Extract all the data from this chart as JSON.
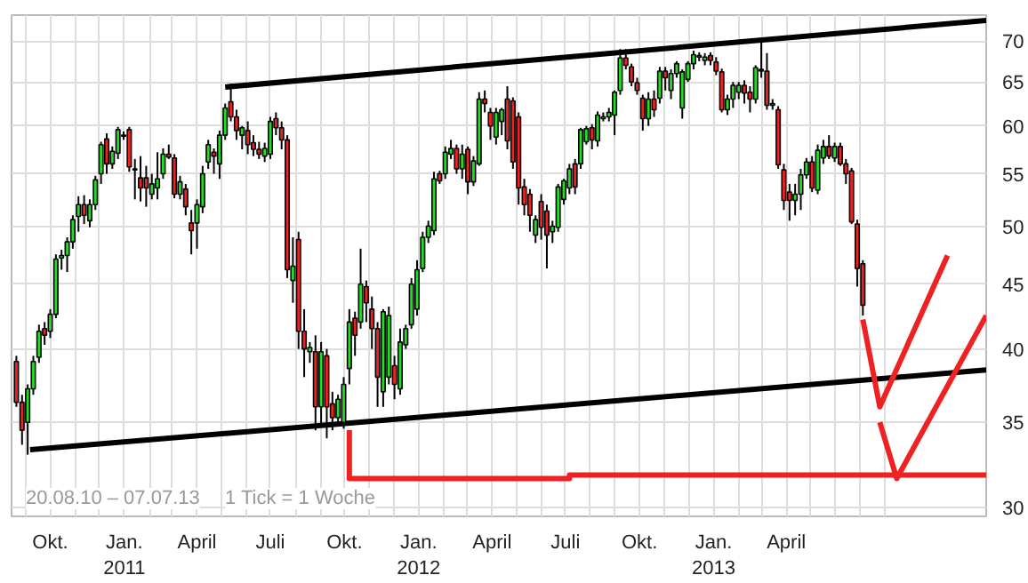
{
  "chart_data": {
    "type": "candlestick",
    "log": true,
    "grid": true,
    "annotations": [
      "20.08.10 – 07.07.13",
      "1 Tick = 1 Woche"
    ],
    "xlim": [
      "2010-08-14",
      "2013-12-05"
    ],
    "ylim": [
      29.5,
      73.4
    ],
    "yticks": [
      30,
      35,
      40,
      45,
      50,
      55,
      60,
      65,
      70
    ],
    "xticks": [
      {
        "value": "2010-09-01",
        "label": null
      },
      {
        "value": "2010-10-01",
        "label": "Okt."
      },
      {
        "value": "2010-11-01",
        "label": null
      },
      {
        "value": "2010-12-01",
        "label": null
      },
      {
        "value": "2011-01-01",
        "label": "Jan.\n2011"
      },
      {
        "value": "2011-02-01",
        "label": null
      },
      {
        "value": "2011-03-01",
        "label": null
      },
      {
        "value": "2011-04-01",
        "label": "April"
      },
      {
        "value": "2011-05-01",
        "label": null
      },
      {
        "value": "2011-06-01",
        "label": null
      },
      {
        "value": "2011-07-01",
        "label": "Juli"
      },
      {
        "value": "2011-08-01",
        "label": null
      },
      {
        "value": "2011-09-01",
        "label": null
      },
      {
        "value": "2011-10-01",
        "label": "Okt."
      },
      {
        "value": "2011-11-01",
        "label": null
      },
      {
        "value": "2011-12-01",
        "label": null
      },
      {
        "value": "2012-01-01",
        "label": "Jan.\n2012"
      },
      {
        "value": "2012-02-01",
        "label": null
      },
      {
        "value": "2012-03-01",
        "label": null
      },
      {
        "value": "2012-04-01",
        "label": "April"
      },
      {
        "value": "2012-05-01",
        "label": null
      },
      {
        "value": "2012-06-01",
        "label": null
      },
      {
        "value": "2012-07-01",
        "label": "Juli"
      },
      {
        "value": "2012-08-01",
        "label": null
      },
      {
        "value": "2012-09-01",
        "label": null
      },
      {
        "value": "2012-10-01",
        "label": "Okt."
      },
      {
        "value": "2012-11-01",
        "label": null
      },
      {
        "value": "2012-12-01",
        "label": null
      },
      {
        "value": "2013-01-01",
        "label": "Jan.\n2013"
      },
      {
        "value": "2013-02-01",
        "label": null
      },
      {
        "value": "2013-03-01",
        "label": null
      },
      {
        "value": "2013-04-01",
        "label": "April"
      },
      {
        "value": "2013-05-01",
        "label": null
      },
      {
        "value": "2013-06-01",
        "label": null
      },
      {
        "value": "2013-07-01",
        "label": null
      },
      {
        "value": "2013-08-01",
        "label": null
      }
    ],
    "series": [
      {
        "type": "line",
        "color": "#000000",
        "x": [
          "2010-09-06",
          "2013-12-05"
        ],
        "values": [
          33.3,
          38.5
        ]
      },
      {
        "type": "line",
        "color": "#000000",
        "x": [
          "2011-05-06",
          "2013-12-05"
        ],
        "values": [
          64.4,
          72.7
        ]
      },
      {
        "type": "line",
        "color": "#ee2222",
        "x": [
          "2011-10-07",
          "2011-10-07",
          "2012-07-06",
          "2012-07-06",
          "2013-12-05"
        ],
        "values": [
          34.5,
          31.6,
          31.6,
          31.8,
          31.8
        ]
      },
      {
        "type": "line",
        "color": "#ee2222",
        "x": [
          "2013-07-05",
          "2013-07-26",
          "2013-10-18"
        ],
        "values": [
          42.2,
          36.0,
          47.4
        ]
      },
      {
        "type": "line",
        "color": "#ee2222",
        "x": [
          "2013-07-26",
          "2013-08-16",
          "2013-12-05"
        ],
        "values": [
          35.0,
          31.6,
          42.5
        ]
      },
      {
        "colors": [
          "#ee2222",
          "#ee2222",
          "#22dd22",
          "#22dd22",
          "#22dd22",
          "#ee2222",
          "#22dd22",
          "#22dd22",
          "#22dd22",
          "#22dd22",
          "#22dd22",
          "#22dd22",
          "#ee2222",
          "#22dd22",
          "#22dd22",
          "#22dd22",
          "#ee2222",
          "#22dd22",
          "#22dd22",
          "#22dd22",
          "#ee2222",
          "#22dd22",
          "#ee2222",
          "#ee2222",
          "#22dd22",
          "#22dd22",
          "#22dd22",
          "#ee2222",
          "#ee2222",
          "#22dd22",
          "#ee2222",
          "#ee2222",
          "#22dd22",
          "#22dd22",
          "#22dd22",
          "#ee2222",
          "#22dd22",
          "#22dd22",
          "#ee2222",
          "#ee2222",
          "#22dd22",
          "#ee2222",
          "#ee2222",
          "#ee2222",
          "#22dd22",
          "#22dd22",
          "#ee2222",
          "#ee2222",
          "#ee2222",
          "#22dd22",
          "#ee2222",
          "#ee2222",
          "#22dd22",
          "#ee2222",
          "#22dd22",
          "#ee2222",
          "#ee2222",
          "#22dd22",
          "#22dd22",
          "#22dd22",
          "#ee2222",
          "#22dd22",
          "#ee2222",
          "#ee2222",
          "#ee2222",
          "#22dd22",
          "#22dd22",
          "#ee2222",
          "#22dd22",
          "#22dd22",
          "#22dd22",
          "#22dd22",
          "#22dd22",
          "#22dd22",
          "#22dd22",
          "#ee2222",
          "#22dd22",
          "#22dd22",
          "#ee2222",
          "#22dd22",
          "#ee2222",
          "#22dd22",
          "#22dd22",
          "#ee2222",
          "#ee2222",
          "#22dd22",
          "#22dd22",
          "#ee2222",
          "#ee2222",
          "#ee2222",
          "#ee2222",
          "#ee2222",
          "#22dd22",
          "#ee2222",
          "#ee2222",
          "#22dd22",
          "#22dd22",
          "#22dd22",
          "#22dd22",
          "#ee2222",
          "#22dd22",
          "#22dd22",
          "#ee2222",
          "#22dd22",
          "#22dd22",
          "#22dd22",
          "#22dd22",
          "#22dd22",
          "#ee2222",
          "#ee2222",
          "#ee2222",
          "#ee2222",
          "#22dd22",
          "#ee2222",
          "#22dd22",
          "#ee2222",
          "#22dd22",
          "#22dd22",
          "#22dd22",
          "#22dd22",
          "#22dd22",
          "#22dd22",
          "#22dd22",
          "#ee2222",
          "#ee2222",
          "#ee2222",
          "#22dd22",
          "#22dd22",
          "#22dd22",
          "#ee2222",
          "#ee2222",
          "#22dd22",
          "#ee2222",
          "#ee2222",
          "#22dd22",
          "#ee2222",
          "#ee2222",
          "#ee2222",
          "#22dd22",
          "#22dd22",
          "#22dd22",
          "#ee2222",
          "#22dd22",
          "#22dd22",
          "#ee2222",
          "#22dd22",
          "#ee2222",
          "#ee2222",
          "#ee2222",
          "#ee2222",
          "#ee2222"
        ],
        "x": [
          "2010-08-20",
          "2010-08-27",
          "2010-09-03",
          "2010-09-10",
          "2010-09-17",
          "2010-09-24",
          "2010-10-01",
          "2010-10-08",
          "2010-10-15",
          "2010-10-22",
          "2010-10-29",
          "2010-11-05",
          "2010-11-12",
          "2010-11-19",
          "2010-11-26",
          "2010-12-03",
          "2010-12-10",
          "2010-12-17",
          "2010-12-24",
          "2010-12-31",
          "2011-01-07",
          "2011-01-14",
          "2011-01-21",
          "2011-01-28",
          "2011-02-04",
          "2011-02-11",
          "2011-02-18",
          "2011-02-25",
          "2011-03-04",
          "2011-03-11",
          "2011-03-18",
          "2011-03-25",
          "2011-04-01",
          "2011-04-08",
          "2011-04-15",
          "2011-04-22",
          "2011-04-29",
          "2011-05-06",
          "2011-05-13",
          "2011-05-20",
          "2011-05-27",
          "2011-06-03",
          "2011-06-10",
          "2011-06-17",
          "2011-06-24",
          "2011-07-01",
          "2011-07-08",
          "2011-07-15",
          "2011-07-22",
          "2011-07-29",
          "2011-08-05",
          "2011-08-12",
          "2011-08-19",
          "2011-08-26",
          "2011-09-02",
          "2011-09-09",
          "2011-09-16",
          "2011-09-23",
          "2011-09-30",
          "2011-10-07",
          "2011-10-14",
          "2011-10-21",
          "2011-10-28",
          "2011-11-04",
          "2011-11-11",
          "2011-11-18",
          "2011-11-25",
          "2011-12-02",
          "2011-12-09",
          "2011-12-16",
          "2011-12-23",
          "2011-12-30",
          "2012-01-06",
          "2012-01-13",
          "2012-01-20",
          "2012-01-27",
          "2012-02-03",
          "2012-02-10",
          "2012-02-17",
          "2012-02-24",
          "2012-03-02",
          "2012-03-09",
          "2012-03-16",
          "2012-03-23",
          "2012-03-30",
          "2012-04-06",
          "2012-04-13",
          "2012-04-20",
          "2012-04-27",
          "2012-05-04",
          "2012-05-11",
          "2012-05-18",
          "2012-05-25",
          "2012-06-01",
          "2012-06-08",
          "2012-06-15",
          "2012-06-22",
          "2012-06-29",
          "2012-07-06",
          "2012-07-13",
          "2012-07-20",
          "2012-07-27",
          "2012-08-03",
          "2012-08-10",
          "2012-08-17",
          "2012-08-24",
          "2012-08-31",
          "2012-09-07",
          "2012-09-14",
          "2012-09-21",
          "2012-09-28",
          "2012-10-05",
          "2012-10-12",
          "2012-10-19",
          "2012-10-26",
          "2012-11-02",
          "2012-11-09",
          "2012-11-16",
          "2012-11-23",
          "2012-11-30",
          "2012-12-07",
          "2012-12-14",
          "2012-12-21",
          "2012-12-28",
          "2013-01-04",
          "2013-01-11",
          "2013-01-18",
          "2013-01-25",
          "2013-02-01",
          "2013-02-08",
          "2013-02-15",
          "2013-02-22",
          "2013-03-01",
          "2013-03-08",
          "2013-03-15",
          "2013-03-22",
          "2013-03-29",
          "2013-04-05",
          "2013-04-12",
          "2013-04-19",
          "2013-04-26",
          "2013-05-03",
          "2013-05-10",
          "2013-05-17",
          "2013-05-24",
          "2013-05-31",
          "2013-06-07",
          "2013-06-14",
          "2013-06-21",
          "2013-06-28",
          "2013-07-05"
        ],
        "ohlc": [
          [
            39.1,
            39.5,
            36.0,
            36.3
          ],
          [
            36.3,
            36.8,
            33.6,
            34.5
          ],
          [
            35.0,
            37.5,
            33.0,
            37.2
          ],
          [
            37.2,
            39.5,
            36.8,
            39.1
          ],
          [
            39.4,
            41.8,
            39.0,
            41.3
          ],
          [
            41.5,
            42.0,
            40.3,
            41.0
          ],
          [
            41.3,
            43.0,
            40.8,
            42.6
          ],
          [
            42.6,
            47.5,
            42.3,
            47.1
          ],
          [
            47.2,
            47.9,
            46.2,
            47.4
          ],
          [
            47.4,
            49.0,
            46.0,
            48.6
          ],
          [
            48.6,
            51.0,
            48.0,
            50.6
          ],
          [
            50.9,
            52.8,
            49.5,
            52.0
          ],
          [
            52.0,
            52.9,
            50.2,
            51.0
          ],
          [
            50.5,
            52.5,
            49.9,
            52.0
          ],
          [
            52.0,
            54.8,
            51.5,
            54.4
          ],
          [
            55.0,
            58.3,
            54.0,
            58.0
          ],
          [
            58.6,
            59.2,
            55.0,
            56.0
          ],
          [
            56.0,
            57.8,
            55.5,
            57.3
          ],
          [
            57.1,
            59.9,
            56.5,
            59.6
          ],
          [
            58.9,
            59.4,
            58.5,
            59.0
          ],
          [
            59.6,
            59.9,
            55.2,
            55.7
          ],
          [
            55.4,
            56.5,
            52.5,
            55.5
          ],
          [
            54.6,
            56.8,
            52.3,
            53.6
          ],
          [
            54.6,
            55.8,
            51.8,
            53.6
          ],
          [
            53.0,
            55.0,
            52.5,
            54.0
          ],
          [
            53.6,
            57.2,
            52.5,
            54.5
          ],
          [
            55.0,
            57.6,
            54.5,
            57.0
          ],
          [
            57.0,
            58.0,
            56.5,
            56.7
          ],
          [
            56.6,
            57.0,
            52.6,
            53.0
          ],
          [
            53.0,
            54.8,
            52.5,
            54.2
          ],
          [
            53.5,
            54.0,
            51.0,
            51.8
          ],
          [
            50.3,
            51.5,
            47.5,
            49.6
          ],
          [
            50.3,
            52.5,
            48.0,
            52.0
          ],
          [
            51.8,
            55.8,
            51.2,
            55.0
          ],
          [
            56.2,
            58.5,
            55.5,
            58.0
          ],
          [
            57.2,
            57.6,
            55.0,
            56.8
          ],
          [
            56.0,
            59.5,
            54.5,
            59.0
          ],
          [
            59.0,
            62.5,
            58.5,
            62.0
          ],
          [
            62.7,
            64.8,
            60.5,
            61.0
          ],
          [
            61.0,
            61.8,
            58.5,
            59.5
          ],
          [
            59.0,
            60.0,
            57.5,
            59.8
          ],
          [
            59.5,
            60.5,
            57.0,
            58.0
          ],
          [
            58.2,
            59.0,
            56.8,
            57.5
          ],
          [
            57.5,
            58.3,
            56.5,
            57.0
          ],
          [
            56.8,
            58.2,
            56.2,
            57.6
          ],
          [
            57.0,
            61.0,
            56.5,
            60.5
          ],
          [
            60.8,
            61.5,
            59.0,
            59.8
          ],
          [
            59.8,
            60.5,
            57.5,
            58.5
          ],
          [
            58.5,
            59.0,
            45.5,
            46.2
          ],
          [
            45.3,
            49.0,
            43.5,
            46.5
          ],
          [
            48.8,
            49.5,
            40.0,
            41.3
          ],
          [
            41.3,
            43.0,
            38.0,
            40.0
          ],
          [
            39.8,
            40.5,
            39.0,
            40.1
          ],
          [
            39.8,
            41.0,
            34.5,
            36.0
          ],
          [
            36.0,
            40.5,
            34.8,
            39.8
          ],
          [
            39.5,
            40.0,
            34.0,
            36.0
          ],
          [
            36.2,
            37.0,
            34.5,
            35.3
          ],
          [
            35.3,
            36.8,
            34.8,
            36.5
          ],
          [
            35.0,
            38.0,
            34.6,
            37.5
          ],
          [
            38.6,
            43.0,
            37.5,
            42.0
          ],
          [
            42.3,
            42.8,
            39.5,
            41.0
          ],
          [
            42.0,
            48.0,
            41.5,
            45.0
          ],
          [
            44.8,
            45.3,
            42.0,
            43.5
          ],
          [
            43.0,
            44.0,
            40.0,
            41.5
          ],
          [
            41.5,
            42.0,
            36.0,
            38.0
          ],
          [
            37.0,
            43.0,
            36.0,
            42.8
          ],
          [
            38.0,
            43.2,
            37.5,
            42.5
          ],
          [
            38.8,
            39.5,
            36.5,
            37.5
          ],
          [
            37.2,
            41.5,
            36.8,
            40.5
          ],
          [
            40.3,
            41.8,
            40.0,
            41.5
          ],
          [
            41.8,
            45.5,
            41.5,
            45.0
          ],
          [
            43.0,
            47.0,
            42.5,
            46.2
          ],
          [
            46.3,
            49.5,
            46.0,
            49.0
          ],
          [
            49.0,
            50.5,
            48.5,
            50.0
          ],
          [
            49.6,
            55.2,
            49.2,
            54.5
          ],
          [
            55.0,
            55.3,
            54.0,
            54.3
          ],
          [
            55.0,
            57.8,
            54.5,
            57.2
          ],
          [
            57.0,
            58.5,
            56.5,
            57.6
          ],
          [
            57.6,
            58.0,
            55.0,
            55.5
          ],
          [
            55.5,
            58.0,
            54.5,
            57.0
          ],
          [
            57.5,
            57.8,
            53.0,
            54.2
          ],
          [
            54.2,
            56.8,
            53.8,
            56.3
          ],
          [
            56.0,
            63.8,
            55.8,
            63.0
          ],
          [
            63.0,
            64.0,
            61.5,
            62.5
          ],
          [
            61.5,
            62.0,
            58.5,
            60.0
          ],
          [
            58.8,
            62.0,
            58.0,
            61.5
          ],
          [
            60.5,
            62.0,
            59.0,
            61.8
          ],
          [
            63.0,
            64.5,
            57.5,
            58.4
          ],
          [
            62.8,
            63.2,
            55.5,
            56.2
          ],
          [
            61.0,
            61.5,
            52.0,
            53.6
          ],
          [
            53.7,
            54.5,
            51.0,
            52.0
          ],
          [
            53.0,
            53.5,
            49.5,
            51.0
          ],
          [
            49.2,
            51.0,
            48.5,
            50.6
          ],
          [
            52.3,
            53.0,
            48.8,
            49.9
          ],
          [
            51.4,
            52.0,
            46.3,
            49.2
          ],
          [
            49.5,
            50.5,
            48.5,
            50.0
          ],
          [
            49.9,
            54.0,
            49.5,
            53.7
          ],
          [
            52.5,
            54.5,
            52.0,
            54.3
          ],
          [
            53.6,
            56.0,
            53.0,
            55.5
          ],
          [
            56.0,
            56.5,
            53.0,
            53.7
          ],
          [
            56.0,
            59.8,
            55.5,
            59.6
          ],
          [
            58.3,
            60.0,
            58.0,
            59.7
          ],
          [
            59.8,
            60.2,
            57.5,
            58.5
          ],
          [
            58.4,
            61.6,
            57.8,
            61.2
          ],
          [
            60.8,
            61.5,
            60.5,
            61.0
          ],
          [
            61.0,
            62.0,
            60.5,
            61.5
          ],
          [
            61.2,
            64.0,
            59.0,
            63.8
          ],
          [
            64.0,
            69.0,
            63.5,
            67.9
          ],
          [
            67.9,
            69.0,
            66.5,
            67.0
          ],
          [
            66.8,
            67.2,
            64.5,
            65.0
          ],
          [
            64.9,
            65.5,
            63.5,
            64.0
          ],
          [
            63.1,
            63.5,
            59.5,
            60.8
          ],
          [
            60.8,
            63.8,
            60.0,
            63.0
          ],
          [
            63.0,
            64.0,
            61.0,
            61.8
          ],
          [
            63.1,
            66.8,
            62.5,
            66.3
          ],
          [
            66.3,
            66.8,
            64.0,
            65.5
          ],
          [
            64.0,
            66.5,
            63.0,
            66.0
          ],
          [
            66.0,
            67.5,
            65.5,
            67.2
          ],
          [
            62.0,
            66.5,
            60.8,
            66.2
          ],
          [
            65.3,
            67.5,
            65.0,
            67.2
          ],
          [
            67.2,
            68.8,
            66.5,
            68.3
          ],
          [
            68.0,
            68.6,
            67.5,
            68.2
          ],
          [
            67.6,
            68.5,
            67.0,
            68.0
          ],
          [
            68.2,
            68.6,
            67.0,
            67.6
          ],
          [
            67.4,
            68.0,
            65.8,
            66.3
          ],
          [
            66.2,
            66.6,
            61.5,
            61.8
          ],
          [
            61.8,
            63.5,
            61.2,
            63.0
          ],
          [
            63.0,
            65.0,
            62.0,
            64.6
          ],
          [
            63.8,
            65.0,
            63.0,
            64.6
          ],
          [
            64.6,
            65.2,
            62.5,
            63.7
          ],
          [
            63.8,
            64.5,
            61.5,
            63.0
          ],
          [
            63.0,
            67.0,
            62.5,
            66.7
          ],
          [
            66.5,
            70.0,
            65.5,
            66.3
          ],
          [
            66.3,
            68.5,
            61.8,
            62.3
          ],
          [
            62.3,
            63.0,
            61.8,
            62.5
          ],
          [
            61.8,
            62.2,
            55.5,
            55.9
          ],
          [
            55.4,
            56.0,
            51.5,
            52.4
          ],
          [
            53.2,
            54.0,
            50.5,
            52.4
          ],
          [
            52.4,
            54.0,
            51.0,
            53.0
          ],
          [
            53.0,
            55.5,
            51.5,
            54.9
          ],
          [
            54.9,
            56.6,
            54.5,
            56.2
          ],
          [
            56.2,
            56.8,
            53.2,
            53.6
          ],
          [
            53.4,
            58.0,
            53.0,
            57.4
          ],
          [
            56.6,
            58.5,
            56.0,
            57.8
          ],
          [
            57.8,
            59.0,
            56.5,
            56.8
          ],
          [
            56.6,
            58.2,
            56.2,
            57.8
          ],
          [
            57.8,
            58.2,
            55.8,
            56.0
          ],
          [
            56.0,
            56.5,
            54.0,
            55.0
          ],
          [
            55.3,
            55.6,
            50.2,
            50.4
          ],
          [
            50.2,
            50.6,
            44.8,
            46.3
          ],
          [
            46.7,
            47.0,
            42.5,
            43.3
          ]
        ]
      }
    ]
  }
}
